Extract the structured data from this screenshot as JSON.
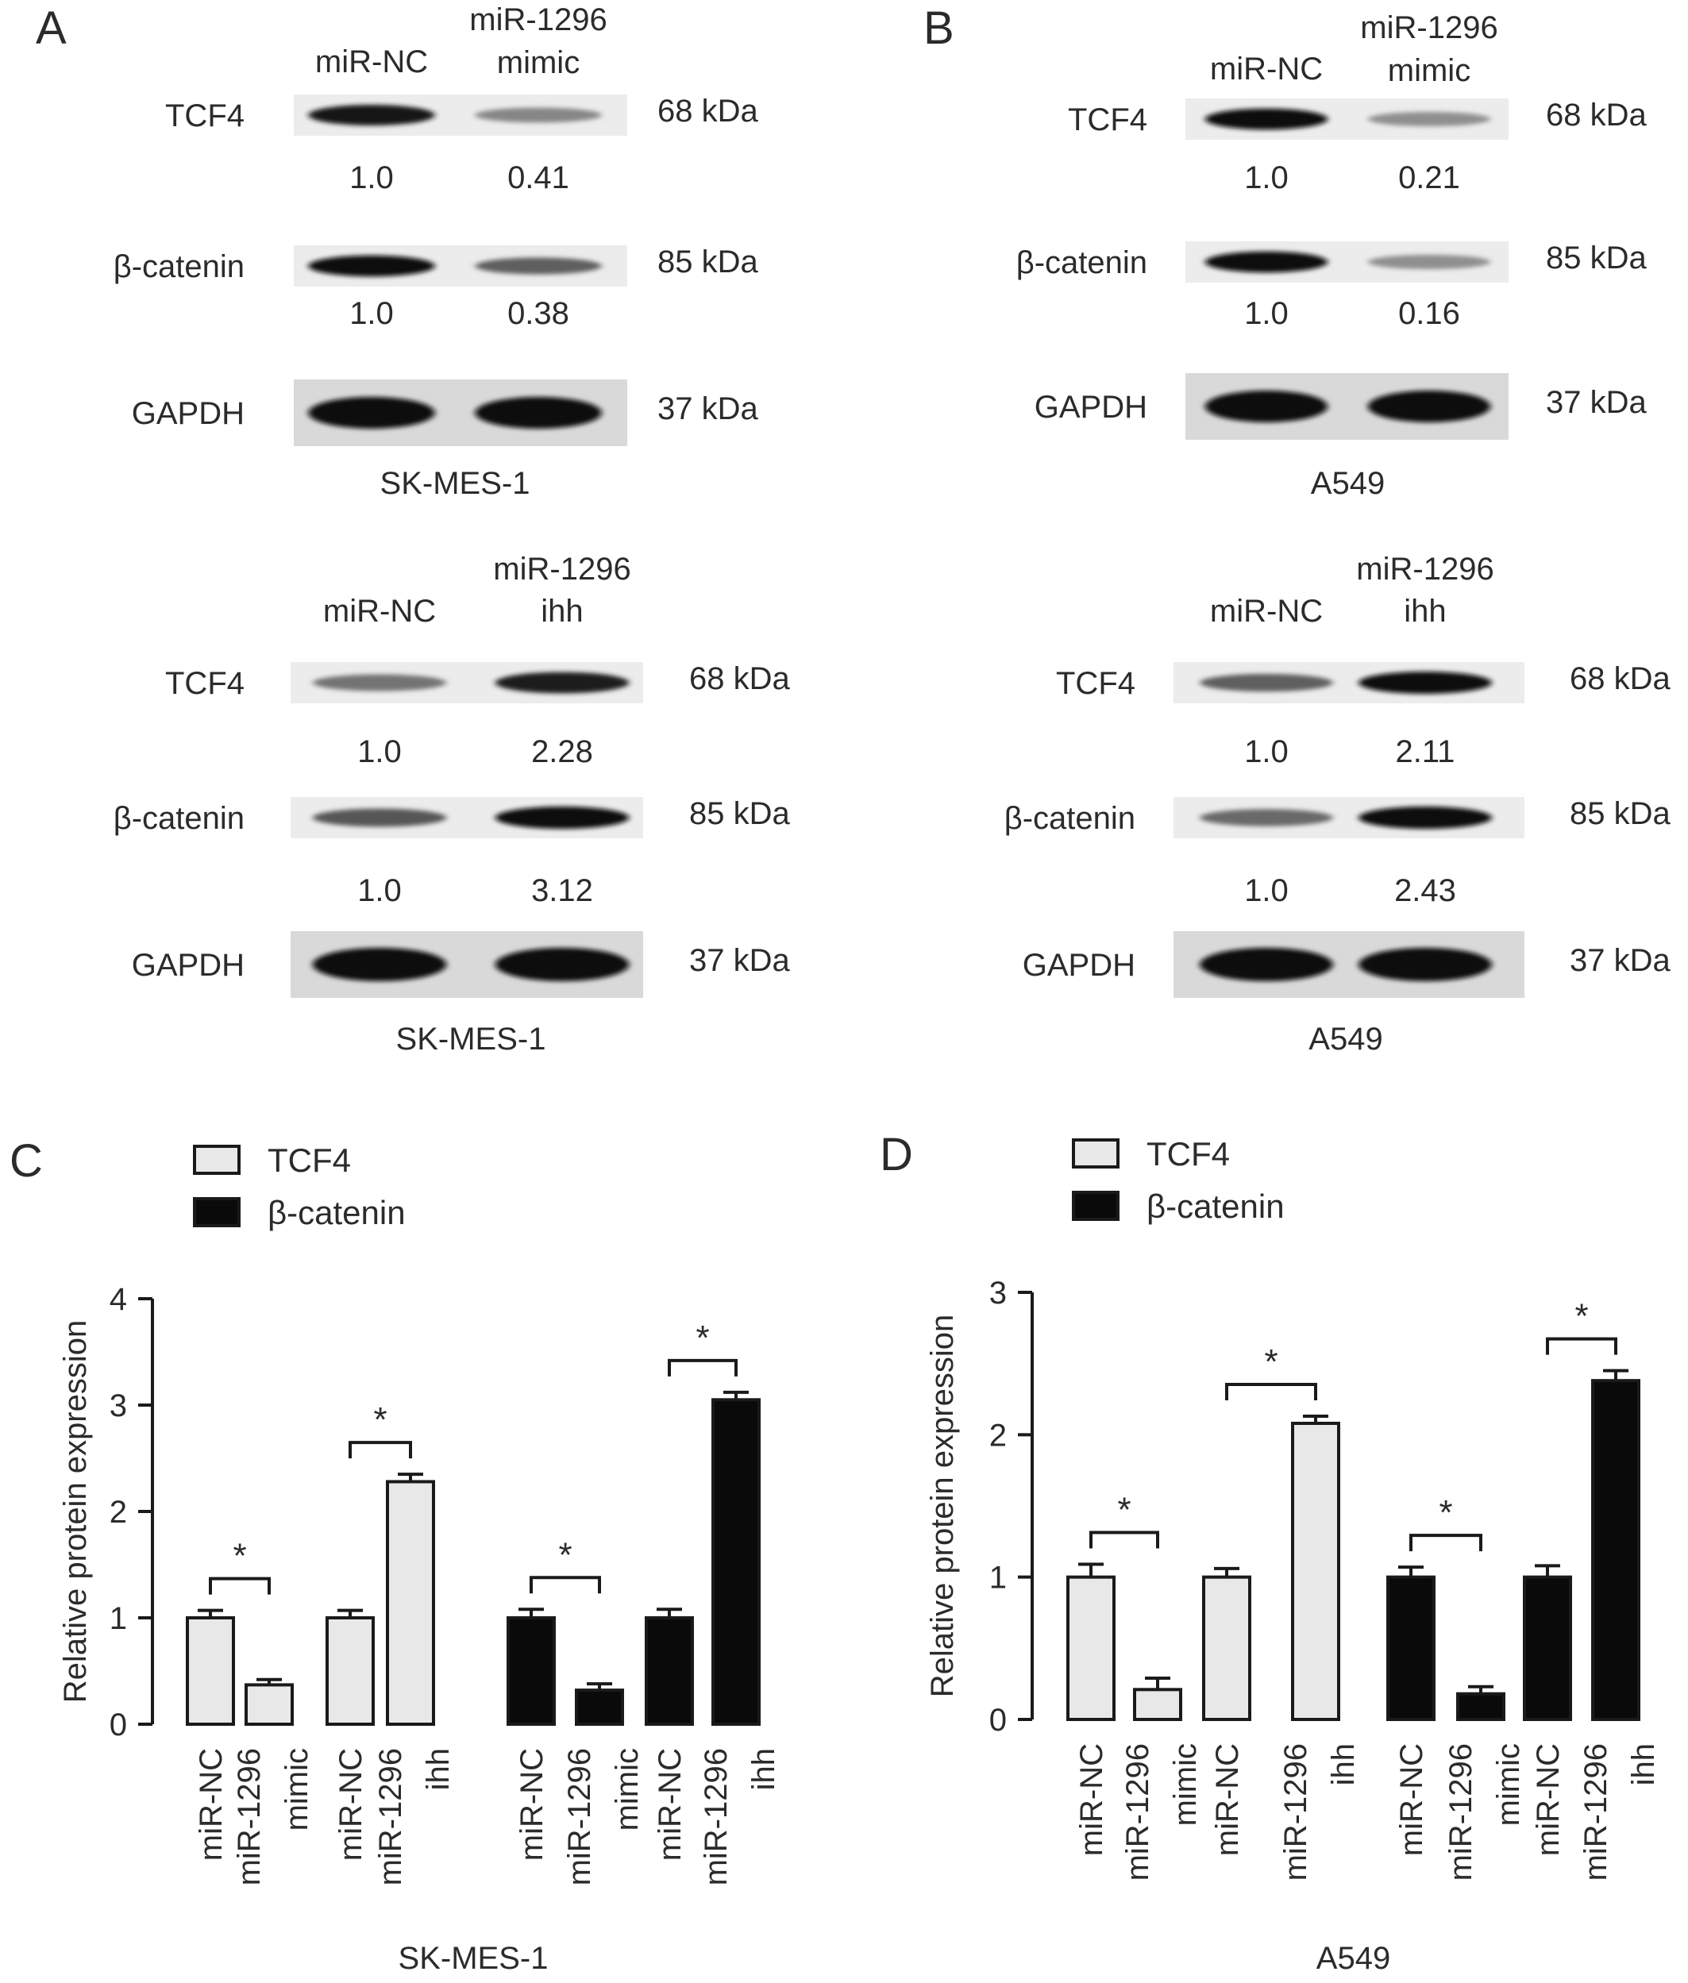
{
  "colors": {
    "tcf4_fill": "#e8e8e8",
    "bcat_fill": "#0a0a0a",
    "outline": "#1a1a1a"
  },
  "blots": [
    {
      "letter": "A",
      "lanes": [
        "miR-NC",
        "miR-1296\nmimic"
      ],
      "cell_line": "SK-MES-1",
      "rows": [
        {
          "label": "TCF4",
          "kda": "68 kDa",
          "quant": [
            "1.0",
            "0.41"
          ],
          "intensity": [
            0.95,
            0.35
          ]
        },
        {
          "label": "β-catenin",
          "kda": "85 kDa",
          "quant": [
            "1.0",
            "0.38"
          ],
          "intensity": [
            1.0,
            0.55
          ]
        },
        {
          "label": "GAPDH",
          "kda": "37 kDa",
          "quant": null,
          "intensity": [
            1.0,
            1.0
          ]
        }
      ]
    },
    {
      "letter": "B",
      "lanes": [
        "miR-NC",
        "miR-1296\nmimic"
      ],
      "cell_line": "A549",
      "rows": [
        {
          "label": "TCF4",
          "kda": "68 kDa",
          "quant": [
            "1.0",
            "0.21"
          ],
          "intensity": [
            1.0,
            0.3
          ]
        },
        {
          "label": "β-catenin",
          "kda": "85 kDa",
          "quant": [
            "1.0",
            "0.16"
          ],
          "intensity": [
            1.0,
            0.3
          ]
        },
        {
          "label": "GAPDH",
          "kda": "37 kDa",
          "quant": null,
          "intensity": [
            1.0,
            1.0
          ]
        }
      ]
    },
    {
      "letter": "",
      "lanes": [
        "miR-NC",
        "miR-1296\nihh"
      ],
      "cell_line": "SK-MES-1",
      "rows": [
        {
          "label": "TCF4",
          "kda": "68 kDa",
          "quant": [
            "1.0",
            "2.28"
          ],
          "intensity": [
            0.45,
            0.9
          ]
        },
        {
          "label": "β-catenin",
          "kda": "85 kDa",
          "quant": [
            "1.0",
            "3.12"
          ],
          "intensity": [
            0.6,
            1.0
          ]
        },
        {
          "label": "GAPDH",
          "kda": "37 kDa",
          "quant": null,
          "intensity": [
            1.0,
            1.0
          ]
        }
      ]
    },
    {
      "letter": "",
      "lanes": [
        "miR-NC",
        "miR-1296\nihh"
      ],
      "cell_line": "A549",
      "rows": [
        {
          "label": "TCF4",
          "kda": "68 kDa",
          "quant": [
            "1.0",
            "2.11"
          ],
          "intensity": [
            0.55,
            1.0
          ]
        },
        {
          "label": "β-catenin",
          "kda": "85 kDa",
          "quant": [
            "1.0",
            "2.43"
          ],
          "intensity": [
            0.5,
            1.0
          ]
        },
        {
          "label": "GAPDH",
          "kda": "37 kDa",
          "quant": null,
          "intensity": [
            1.0,
            1.0
          ]
        }
      ]
    }
  ],
  "chart_data": [
    {
      "type": "bar",
      "panel": "C",
      "title": "",
      "xlabel": "SK-MES-1",
      "ylabel": "Relative protein expression",
      "ylim": [
        0,
        4
      ],
      "yticks": [
        0,
        1,
        2,
        3,
        4
      ],
      "legend": [
        "TCF4",
        "β-catenin"
      ],
      "legend_position": "top-left",
      "categories": [
        "miR-NC",
        "miR-1296\nmimic",
        "miR-NC",
        "miR-1296\nihh"
      ],
      "series": [
        {
          "name": "TCF4",
          "values": [
            1.0,
            0.37,
            1.0,
            2.28
          ],
          "errors": [
            0.07,
            0.05,
            0.07,
            0.07
          ]
        },
        {
          "name": "β-catenin",
          "values": [
            1.0,
            0.32,
            1.0,
            3.05
          ],
          "errors": [
            0.08,
            0.06,
            0.08,
            0.07
          ]
        }
      ],
      "significance": [
        {
          "series": 0,
          "pair": [
            0,
            1
          ],
          "label": "*"
        },
        {
          "series": 0,
          "pair": [
            2,
            3
          ],
          "label": "*"
        },
        {
          "series": 1,
          "pair": [
            0,
            1
          ],
          "label": "*"
        },
        {
          "series": 1,
          "pair": [
            2,
            3
          ],
          "label": "*"
        }
      ]
    },
    {
      "type": "bar",
      "panel": "D",
      "title": "",
      "xlabel": "A549",
      "ylabel": "Relative protein expression",
      "ylim": [
        0,
        3
      ],
      "yticks": [
        0,
        1,
        2,
        3
      ],
      "legend": [
        "TCF4",
        "β-catenin"
      ],
      "legend_position": "top-left",
      "categories": [
        "miR-NC",
        "miR-1296\nmimic",
        "miR-NC",
        "miR-1296\nihh"
      ],
      "series": [
        {
          "name": "TCF4",
          "values": [
            1.0,
            0.21,
            1.0,
            2.08
          ],
          "errors": [
            0.09,
            0.08,
            0.06,
            0.05
          ]
        },
        {
          "name": "β-catenin",
          "values": [
            1.0,
            0.18,
            1.0,
            2.38
          ],
          "errors": [
            0.07,
            0.05,
            0.08,
            0.07
          ]
        }
      ],
      "significance": [
        {
          "series": 0,
          "pair": [
            0,
            1
          ],
          "label": "*"
        },
        {
          "series": 0,
          "pair": [
            2,
            3
          ],
          "label": "*"
        },
        {
          "series": 1,
          "pair": [
            0,
            1
          ],
          "label": "*"
        },
        {
          "series": 1,
          "pair": [
            2,
            3
          ],
          "label": "*"
        }
      ]
    }
  ]
}
